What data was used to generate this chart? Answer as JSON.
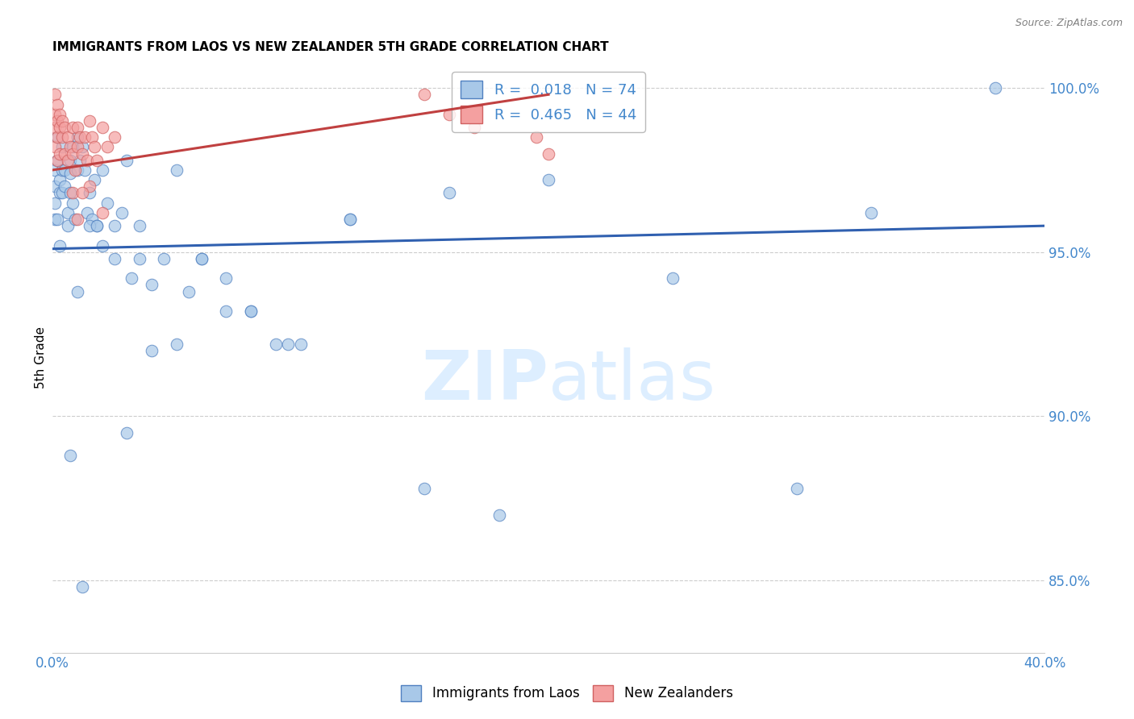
{
  "title": "IMMIGRANTS FROM LAOS VS NEW ZEALANDER 5TH GRADE CORRELATION CHART",
  "source_text": "Source: ZipAtlas.com",
  "ylabel": "5th Grade",
  "xlim": [
    0.0,
    0.4
  ],
  "ylim": [
    0.828,
    1.008
  ],
  "xticks": [
    0.0,
    0.05,
    0.1,
    0.15,
    0.2,
    0.25,
    0.3,
    0.35,
    0.4
  ],
  "xtick_labels": [
    "0.0%",
    "",
    "",
    "",
    "",
    "",
    "",
    "",
    "40.0%"
  ],
  "yticks": [
    0.85,
    0.9,
    0.95,
    1.0
  ],
  "ytick_labels": [
    "85.0%",
    "90.0%",
    "95.0%",
    "100.0%"
  ],
  "blue_color": "#a8c8e8",
  "pink_color": "#f4a0a0",
  "blue_edge_color": "#5080c0",
  "pink_edge_color": "#d06060",
  "blue_line_color": "#3060b0",
  "pink_line_color": "#c04040",
  "watermark_color": "#ddeeff",
  "grid_color": "#cccccc",
  "background_color": "#ffffff",
  "tick_label_color": "#4488cc",
  "blue_x": [
    0.001,
    0.001,
    0.001,
    0.001,
    0.002,
    0.002,
    0.002,
    0.003,
    0.003,
    0.004,
    0.004,
    0.004,
    0.005,
    0.005,
    0.006,
    0.006,
    0.007,
    0.007,
    0.007,
    0.008,
    0.008,
    0.009,
    0.01,
    0.01,
    0.011,
    0.012,
    0.013,
    0.014,
    0.015,
    0.016,
    0.017,
    0.018,
    0.02,
    0.022,
    0.025,
    0.028,
    0.03,
    0.032,
    0.035,
    0.04,
    0.045,
    0.05,
    0.06,
    0.07,
    0.08,
    0.09,
    0.1,
    0.12,
    0.15,
    0.18,
    0.2,
    0.25,
    0.3,
    0.33,
    0.38,
    0.01,
    0.015,
    0.02,
    0.025,
    0.03,
    0.05,
    0.06,
    0.08,
    0.12,
    0.007,
    0.012,
    0.018,
    0.035,
    0.055,
    0.07,
    0.04,
    0.095,
    0.16,
    0.003
  ],
  "blue_y": [
    0.975,
    0.97,
    0.965,
    0.96,
    0.985,
    0.978,
    0.96,
    0.972,
    0.968,
    0.982,
    0.975,
    0.968,
    0.975,
    0.97,
    0.962,
    0.958,
    0.978,
    0.974,
    0.968,
    0.982,
    0.965,
    0.96,
    0.975,
    0.985,
    0.978,
    0.982,
    0.975,
    0.962,
    0.968,
    0.96,
    0.972,
    0.958,
    0.975,
    0.965,
    0.958,
    0.962,
    0.978,
    0.942,
    0.948,
    0.94,
    0.948,
    0.975,
    0.948,
    0.942,
    0.932,
    0.922,
    0.922,
    0.96,
    0.878,
    0.87,
    0.972,
    0.942,
    0.878,
    0.962,
    1.0,
    0.938,
    0.958,
    0.952,
    0.948,
    0.895,
    0.922,
    0.948,
    0.932,
    0.96,
    0.888,
    0.848,
    0.958,
    0.958,
    0.938,
    0.932,
    0.92,
    0.922,
    0.968,
    0.952
  ],
  "pink_x": [
    0.001,
    0.001,
    0.001,
    0.001,
    0.002,
    0.002,
    0.002,
    0.002,
    0.003,
    0.003,
    0.003,
    0.004,
    0.004,
    0.005,
    0.005,
    0.006,
    0.006,
    0.007,
    0.008,
    0.008,
    0.009,
    0.01,
    0.01,
    0.011,
    0.012,
    0.013,
    0.014,
    0.015,
    0.016,
    0.017,
    0.018,
    0.02,
    0.022,
    0.025,
    0.15,
    0.16,
    0.17,
    0.195,
    0.2,
    0.008,
    0.015,
    0.01,
    0.012,
    0.02
  ],
  "pink_y": [
    0.998,
    0.992,
    0.988,
    0.982,
    0.995,
    0.99,
    0.985,
    0.978,
    0.992,
    0.988,
    0.98,
    0.99,
    0.985,
    0.988,
    0.98,
    0.985,
    0.978,
    0.982,
    0.988,
    0.98,
    0.975,
    0.988,
    0.982,
    0.985,
    0.98,
    0.985,
    0.978,
    0.99,
    0.985,
    0.982,
    0.978,
    0.988,
    0.982,
    0.985,
    0.998,
    0.992,
    0.988,
    0.985,
    0.98,
    0.968,
    0.97,
    0.96,
    0.968,
    0.962
  ],
  "blue_trend_x": [
    0.0,
    0.4
  ],
  "blue_trend_y": [
    0.951,
    0.958
  ],
  "pink_trend_x": [
    0.0,
    0.2
  ],
  "pink_trend_y": [
    0.975,
    0.998
  ]
}
